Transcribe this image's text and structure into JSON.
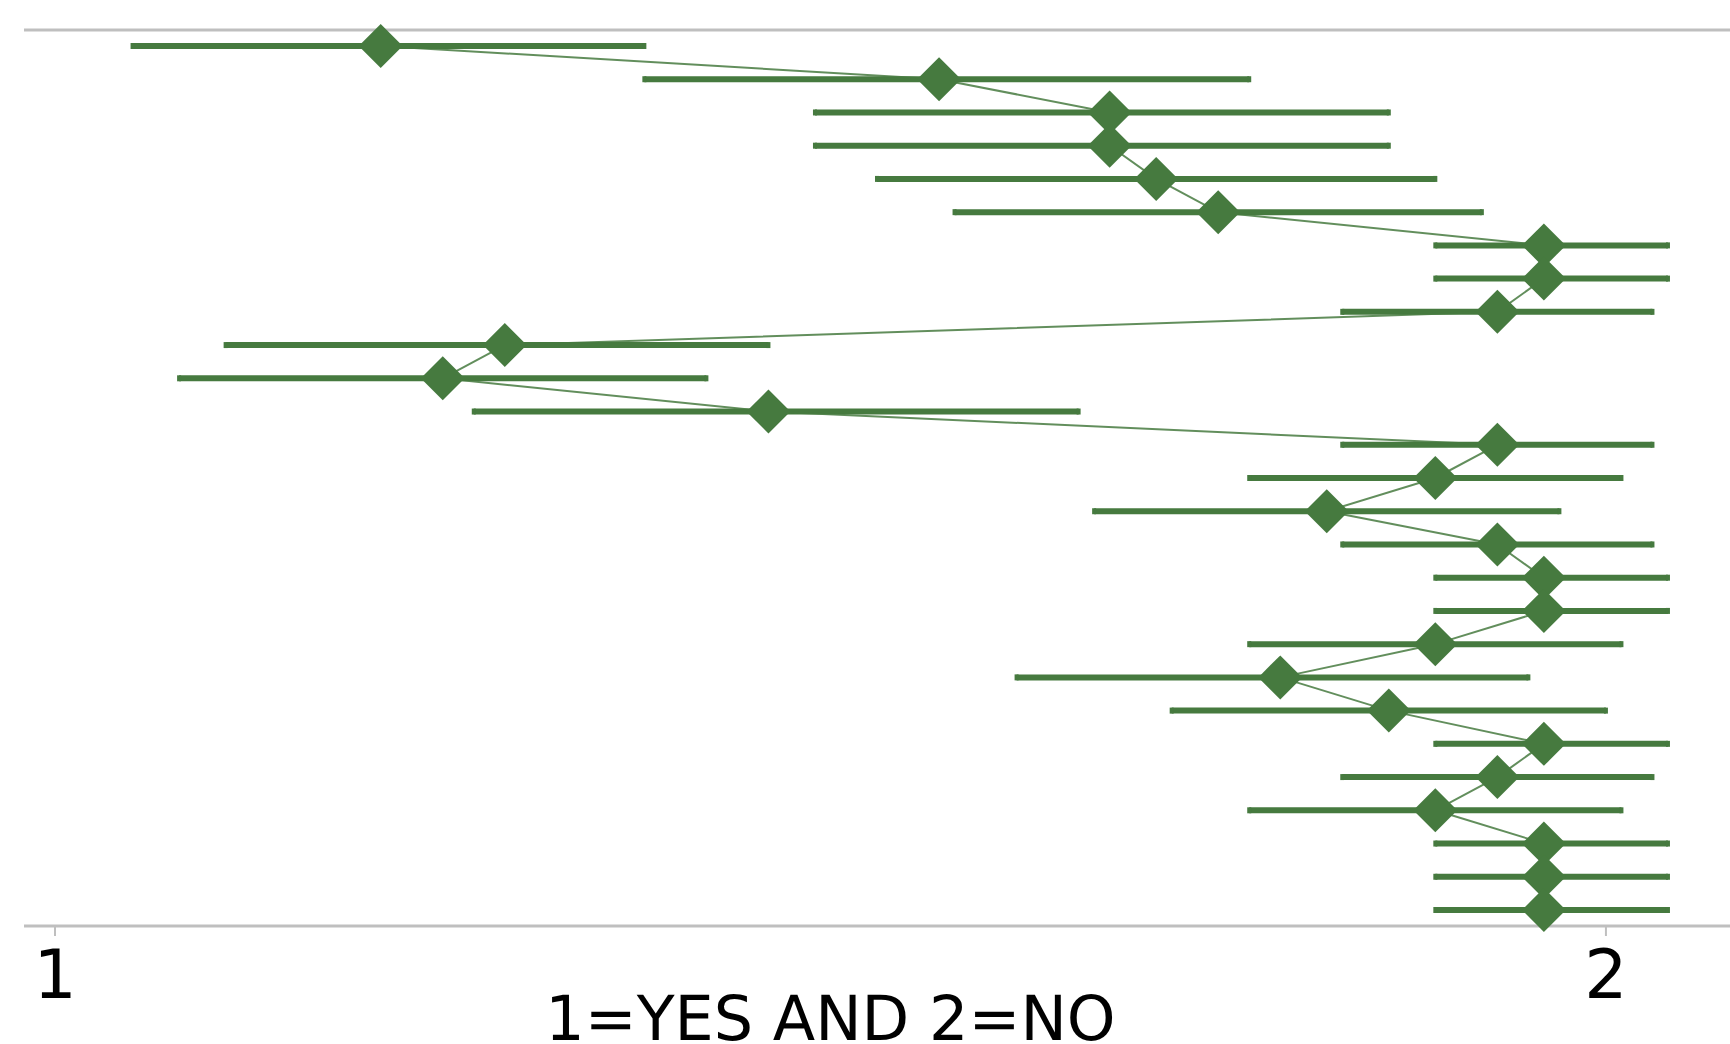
{
  "chart_data": {
    "type": "line",
    "orientation": "horizontal",
    "xlabel": "1=YES AND 2=NO",
    "xlim": [
      0.98,
      2.08
    ],
    "xticks": [
      1,
      2
    ],
    "grid": false,
    "marker": "diamond",
    "line_style": "solid",
    "tick_labels": "x",
    "categories": [
      null,
      null,
      null,
      null,
      null,
      null,
      null,
      null,
      null,
      null,
      null,
      null,
      null,
      null,
      null,
      null,
      null,
      null,
      null,
      null,
      null,
      null,
      null,
      null,
      null,
      null,
      null
    ],
    "series": [
      {
        "color": "#467a3f",
        "values": [
          1.21,
          1.57,
          1.68,
          1.68,
          1.71,
          1.75,
          1.96,
          1.96,
          1.93,
          1.29,
          1.25,
          1.46,
          1.93,
          1.89,
          1.82,
          1.93,
          1.96,
          1.96,
          1.89,
          1.79,
          1.86,
          1.96,
          1.93,
          1.89,
          1.96,
          1.96,
          1.96
        ],
        "errors": [
          [
            1.05,
            1.38
          ],
          [
            1.38,
            1.77
          ],
          [
            1.49,
            1.86
          ],
          [
            1.49,
            1.86
          ],
          [
            1.53,
            1.89
          ],
          [
            1.58,
            1.92
          ],
          [
            1.89,
            2.04
          ],
          [
            1.89,
            2.04
          ],
          [
            1.83,
            2.03
          ],
          [
            1.11,
            1.46
          ],
          [
            1.08,
            1.42
          ],
          [
            1.27,
            1.66
          ],
          [
            1.83,
            2.03
          ],
          [
            1.77,
            2.01
          ],
          [
            1.67,
            1.97
          ],
          [
            1.83,
            2.03
          ],
          [
            1.89,
            2.04
          ],
          [
            1.89,
            2.04
          ],
          [
            1.77,
            2.01
          ],
          [
            1.62,
            1.95
          ],
          [
            1.72,
            2.0
          ],
          [
            1.89,
            2.04
          ],
          [
            1.83,
            2.03
          ],
          [
            1.77,
            2.01
          ],
          [
            1.89,
            2.04
          ],
          [
            1.89,
            2.04
          ],
          [
            1.89,
            2.04
          ]
        ]
      }
    ]
  }
}
